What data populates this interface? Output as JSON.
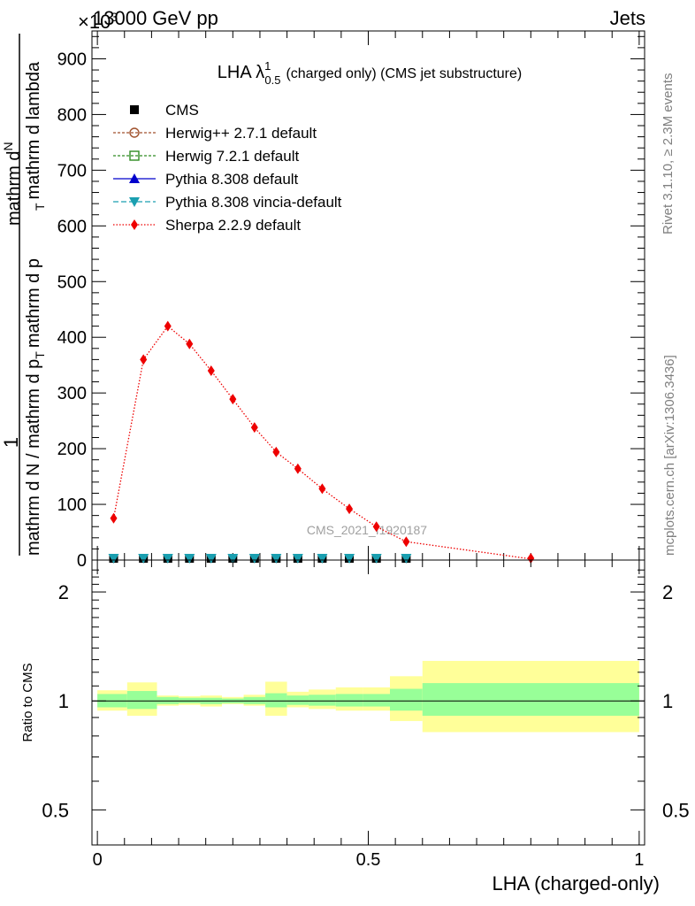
{
  "header": {
    "left": "13000 GeV pp",
    "right": "Jets"
  },
  "side_labels": {
    "rivet": "Rivet 3.1.10, ≥ 2.3M events",
    "mcplots": "mcplots.cern.ch [arXiv:1306.3436]"
  },
  "watermark": "CMS_2021_I1920187",
  "y_exponent": "×10",
  "y_exponent_power": "3",
  "main_y_label": {
    "numerator": "1",
    "denominator": "mathrm d N / mathrm d p",
    "sub": "T",
    "mid": "mathrm d p",
    "mid2": "mathrm d lambda",
    "top": "mathrm d",
    "top2": "N"
  },
  "chart_data": [
    {
      "type": "line",
      "title": "LHA λ",
      "title_sup": "1",
      "title_sub": "0.5",
      "title_suffix": "(charged only) (CMS jet substructure)",
      "xlabel": "",
      "ylabel": "1 / mathrm d N / mathrm d p_T mathrm d p_T mathrm d lambda mathrm dN",
      "xlim": [
        -0.01,
        1.01
      ],
      "ylim": [
        0,
        950
      ],
      "y_ticks": [
        0,
        100,
        200,
        300,
        400,
        500,
        600,
        700,
        800,
        900
      ],
      "legend_placement": "top-left",
      "legend": [
        {
          "name": "CMS",
          "marker": "square",
          "color": "#000000",
          "dash": ""
        },
        {
          "name": "Herwig++ 2.7.1 default",
          "marker": "circle-open",
          "color": "#a0522d",
          "dash": "3,2"
        },
        {
          "name": "Herwig 7.2.1 default",
          "marker": "square-open",
          "color": "#2e8b22",
          "dash": "3,2"
        },
        {
          "name": "Pythia 8.308 default",
          "marker": "triangle-up",
          "color": "#0000cc",
          "dash": ""
        },
        {
          "name": "Pythia 8.308 vincia-default",
          "marker": "triangle-down",
          "color": "#1a9fb0",
          "dash": "6,3"
        },
        {
          "name": "Sherpa 2.2.9 default",
          "marker": "diamond",
          "color": "#ee0000",
          "dash": "1.5,2"
        }
      ],
      "series": [
        {
          "name": "CMS",
          "color": "#000000",
          "x": [
            0.03,
            0.085,
            0.13,
            0.17,
            0.21,
            0.25,
            0.29,
            0.33,
            0.37,
            0.415,
            0.465,
            0.515,
            0.57
          ],
          "y": [
            0.3,
            0.3,
            0.3,
            0.3,
            0.3,
            0.3,
            0.3,
            0.3,
            0.3,
            0.3,
            0.3,
            0.3,
            0.3
          ]
        },
        {
          "name": "Pythia 8.308 vincia-default",
          "color": "#1a9fb0",
          "x": [
            0.03,
            0.085,
            0.13,
            0.17,
            0.21,
            0.25,
            0.29,
            0.33,
            0.37,
            0.415,
            0.465,
            0.515,
            0.57
          ],
          "y": [
            0.3,
            0.3,
            0.3,
            0.3,
            0.3,
            0.3,
            0.3,
            0.3,
            0.3,
            0.3,
            0.3,
            0.3,
            0.3
          ]
        },
        {
          "name": "Sherpa 2.2.9 default",
          "color": "#ee0000",
          "x": [
            0.03,
            0.085,
            0.13,
            0.17,
            0.21,
            0.25,
            0.29,
            0.33,
            0.37,
            0.415,
            0.465,
            0.515,
            0.57,
            0.8
          ],
          "y": [
            75,
            360,
            420,
            388,
            340,
            289,
            238,
            194,
            164,
            128,
            92,
            60,
            33,
            2
          ]
        }
      ]
    },
    {
      "type": "area",
      "xlabel": "LHA (charged-only)",
      "ylabel": "Ratio to CMS",
      "xlim": [
        -0.01,
        1.01
      ],
      "ylim": [
        0.4,
        2.45
      ],
      "log_y": true,
      "y_ticks": [
        0.5,
        1,
        2
      ],
      "x_ticks": [
        0,
        0.5,
        1
      ],
      "reference_line": 1,
      "bands": {
        "edges": [
          0,
          0.055,
          0.11,
          0.15,
          0.19,
          0.23,
          0.27,
          0.31,
          0.35,
          0.39,
          0.44,
          0.49,
          0.54,
          0.6,
          1.0
        ],
        "inner_lo": [
          0.96,
          0.95,
          0.98,
          0.985,
          0.98,
          0.985,
          0.98,
          0.96,
          0.975,
          0.97,
          0.965,
          0.965,
          0.94,
          0.91
        ],
        "inner_hi": [
          1.045,
          1.065,
          1.025,
          1.02,
          1.02,
          1.015,
          1.025,
          1.05,
          1.035,
          1.04,
          1.045,
          1.045,
          1.08,
          1.12
        ],
        "outer_lo": [
          0.94,
          0.91,
          0.97,
          0.975,
          0.965,
          0.98,
          0.97,
          0.91,
          0.96,
          0.95,
          0.94,
          0.94,
          0.88,
          0.82
        ],
        "outer_hi": [
          1.07,
          1.125,
          1.035,
          1.03,
          1.035,
          1.025,
          1.04,
          1.13,
          1.06,
          1.075,
          1.09,
          1.09,
          1.17,
          1.29
        ]
      },
      "band_colors": {
        "inner": "#98ff98",
        "outer": "#ffff99"
      }
    }
  ]
}
